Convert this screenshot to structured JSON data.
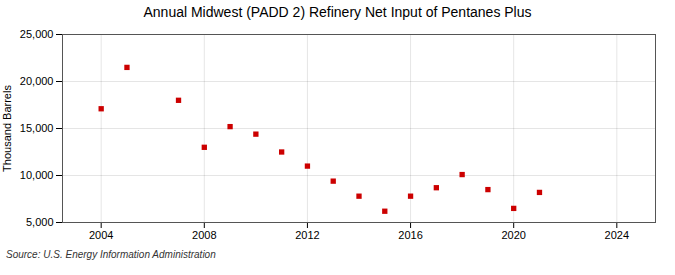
{
  "chart_data": {
    "type": "scatter",
    "title": "Annual Midwest (PADD 2) Refinery Net Input of Pentanes Plus",
    "ylabel": "Thousand Barrels",
    "source": "Source: U.S. Energy Information Administration",
    "x": [
      2004,
      2005,
      2007,
      2008,
      2009,
      2010,
      2011,
      2012,
      2013,
      2014,
      2015,
      2016,
      2017,
      2018,
      2019,
      2020,
      2021
    ],
    "values": [
      17100,
      21500,
      18000,
      13000,
      15200,
      14400,
      12500,
      11000,
      9400,
      7800,
      6200,
      7800,
      8700,
      10100,
      8500,
      6500,
      8200
    ],
    "color": "#cc0000",
    "marker": "square",
    "xlim": [
      2002.5,
      2025.5
    ],
    "xticks": [
      2004,
      2008,
      2012,
      2016,
      2020,
      2024
    ],
    "ylim": [
      5000,
      25000
    ],
    "yticks": [
      {
        "value": 5000,
        "label": "5,000"
      },
      {
        "value": 10000,
        "label": "10,000"
      },
      {
        "value": 15000,
        "label": "15,000"
      },
      {
        "value": 20000,
        "label": "20,000"
      },
      {
        "value": 25000,
        "label": "25,000"
      }
    ],
    "grid": true
  }
}
